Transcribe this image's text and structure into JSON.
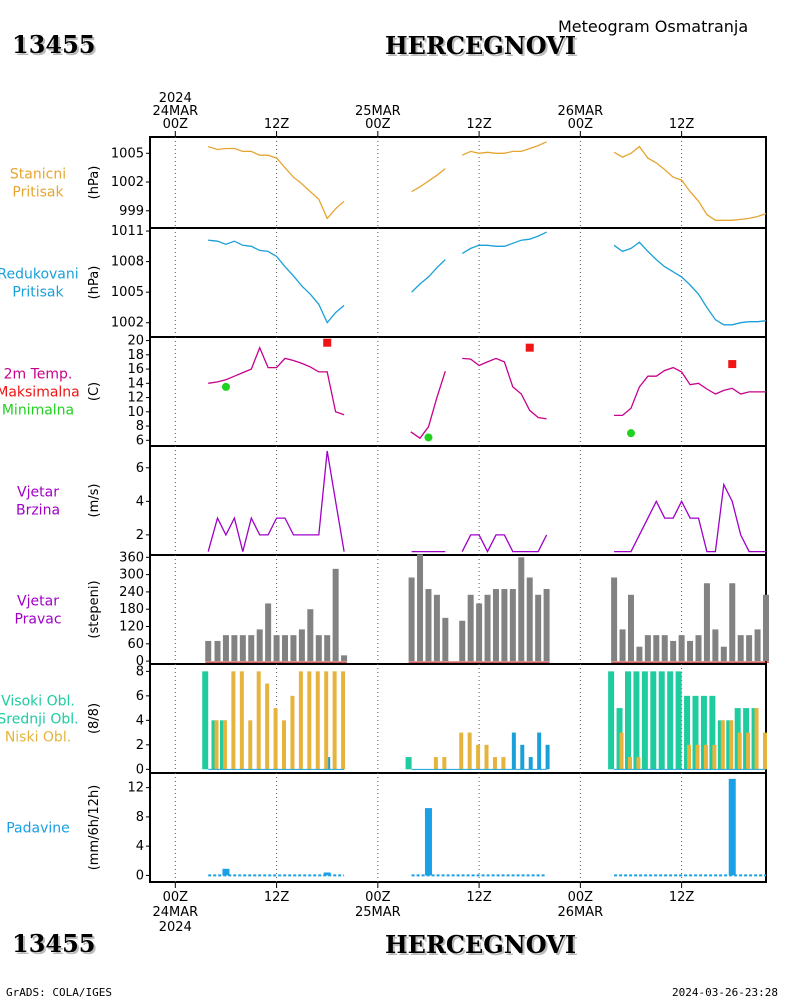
{
  "header": {
    "station_id": "13455",
    "station_name": "HERCEGNOVI",
    "product": "Meteogram Osmatranja"
  },
  "footer": {
    "credit": "GrADS: COLA/IGES",
    "timestamp": "2024-03-26-23:28"
  },
  "time_axis": {
    "top_ticks": [
      {
        "hour": 0,
        "lines": [
          "2024",
          "24MAR",
          "00Z"
        ]
      },
      {
        "hour": 12,
        "lines": [
          "12Z"
        ]
      },
      {
        "hour": 24,
        "lines": [
          "25MAR",
          "00Z"
        ]
      },
      {
        "hour": 36,
        "lines": [
          "12Z"
        ]
      },
      {
        "hour": 48,
        "lines": [
          "26MAR",
          "00Z"
        ]
      },
      {
        "hour": 60,
        "lines": [
          "12Z"
        ]
      }
    ],
    "bottom_ticks": [
      {
        "hour": 0,
        "lines": [
          "00Z",
          "24MAR",
          "2024"
        ]
      },
      {
        "hour": 12,
        "lines": [
          "12Z"
        ]
      },
      {
        "hour": 24,
        "lines": [
          "00Z",
          "25MAR"
        ]
      },
      {
        "hour": 36,
        "lines": [
          "12Z"
        ]
      },
      {
        "hour": 48,
        "lines": [
          "00Z",
          "26MAR"
        ]
      },
      {
        "hour": 60,
        "lines": [
          "12Z"
        ]
      }
    ],
    "xlim": [
      -3,
      70
    ]
  },
  "colors": {
    "pressure": "#e6a532",
    "reduced_pressure": "#1aa0d8",
    "temperature": "#c8008c",
    "max_temp": "#f01414",
    "min_temp": "#1ed21e",
    "wind": "#a000c8",
    "wind_dir_bar": "#828282",
    "cloud_high": "#1ecca0",
    "cloud_mid": "#1ecca0",
    "cloud_low": "#e6b43c",
    "cloud_blue": "#1aa0d8",
    "precip": "#1aa0e6",
    "precip_mark": "#b40000"
  },
  "chart_data": [
    {
      "id": "station_pressure",
      "type": "line",
      "title_lines": [
        "Stanicni",
        "Pritisak"
      ],
      "title_colors": [
        "pressure",
        "pressure"
      ],
      "ylabel": "(hPa)",
      "ylim": [
        997.2,
        1006.7
      ],
      "yticks": [
        999,
        1002,
        1005
      ],
      "series": [
        {
          "color": "pressure",
          "x": [
            3.9,
            5,
            6,
            7,
            8,
            9,
            10,
            11,
            12,
            13,
            14,
            15,
            16,
            17,
            18,
            19,
            20
          ],
          "y": [
            1005.7,
            1005.4,
            1005.5,
            1005.5,
            1005.2,
            1005.2,
            1004.8,
            1004.8,
            1004.5,
            1003.5,
            1002.5,
            1001.8,
            1001.0,
            1000.2,
            998.2,
            999.2,
            1000.0
          ]
        },
        {
          "color": "pressure",
          "x": [
            28,
            29,
            30,
            31,
            32
          ],
          "y": [
            1001.0,
            1001.5,
            1002.1,
            1002.7,
            1003.4
          ]
        },
        {
          "color": "pressure",
          "x": [
            34,
            35,
            36,
            37,
            38,
            39,
            40,
            41,
            42,
            43,
            44
          ],
          "y": [
            1004.8,
            1005.2,
            1005.0,
            1005.1,
            1005.0,
            1005.0,
            1005.2,
            1005.2,
            1005.5,
            1005.8,
            1006.2
          ]
        },
        {
          "color": "pressure",
          "x": [
            52,
            53,
            54,
            55,
            56,
            57,
            58,
            59,
            60,
            61,
            62,
            63,
            64,
            65,
            66,
            67,
            68,
            69,
            70
          ],
          "y": [
            1005.1,
            1004.6,
            1005.0,
            1005.7,
            1004.5,
            1004.0,
            1003.3,
            1002.5,
            1002.2,
            1001.0,
            1000.0,
            998.6,
            998.0,
            998.0,
            998.0,
            998.1,
            998.2,
            998.4,
            998.7
          ]
        }
      ]
    },
    {
      "id": "reduced_pressure",
      "type": "line",
      "title_lines": [
        "Redukovani",
        "Pritisak"
      ],
      "title_colors": [
        "reduced_pressure",
        "reduced_pressure"
      ],
      "ylabel": "(hPa)",
      "ylim": [
        1000.6,
        1011.3
      ],
      "yticks": [
        1002,
        1005,
        1008,
        1011
      ],
      "series": [
        {
          "color": "reduced_pressure",
          "x": [
            3.9,
            5,
            6,
            7,
            8,
            9,
            10,
            11,
            12,
            13,
            14,
            15,
            16,
            17,
            18,
            19,
            20
          ],
          "y": [
            1010.1,
            1010.0,
            1009.7,
            1010.0,
            1009.6,
            1009.5,
            1009.1,
            1009.0,
            1008.5,
            1007.5,
            1006.6,
            1005.6,
            1004.8,
            1003.8,
            1002.0,
            1003.0,
            1003.7
          ]
        },
        {
          "color": "reduced_pressure",
          "x": [
            28,
            29,
            30,
            31,
            32
          ],
          "y": [
            1005.0,
            1005.8,
            1006.5,
            1007.4,
            1008.2
          ]
        },
        {
          "color": "reduced_pressure",
          "x": [
            34,
            35,
            36,
            37,
            38,
            39,
            40,
            41,
            42,
            43,
            44
          ],
          "y": [
            1008.8,
            1009.3,
            1009.6,
            1009.6,
            1009.5,
            1009.5,
            1009.8,
            1010.1,
            1010.2,
            1010.5,
            1010.9
          ]
        },
        {
          "color": "reduced_pressure",
          "x": [
            52,
            53,
            54,
            55,
            56,
            57,
            58,
            59,
            60,
            61,
            62,
            63,
            64,
            65,
            66,
            67,
            68,
            69,
            70
          ],
          "y": [
            1009.6,
            1009.0,
            1009.3,
            1009.9,
            1009.0,
            1008.2,
            1007.5,
            1007.0,
            1006.5,
            1005.7,
            1004.8,
            1003.5,
            1002.3,
            1001.8,
            1001.8,
            1002.0,
            1002.1,
            1002.1,
            1002.2
          ]
        }
      ]
    },
    {
      "id": "temperature",
      "type": "line",
      "title_lines": [
        "2m Temp.",
        "Maksimalna",
        "Minimalna"
      ],
      "title_colors": [
        "temperature",
        "max_temp",
        "min_temp"
      ],
      "ylabel": "(C)",
      "ylim": [
        5.2,
        20.5
      ],
      "yticks": [
        6,
        8,
        10,
        12,
        14,
        16,
        18,
        20
      ],
      "series": [
        {
          "color": "temperature",
          "x": [
            3.9,
            5,
            6,
            7,
            8,
            9,
            10,
            11,
            12,
            13,
            14,
            15,
            16,
            17,
            18,
            19,
            20
          ],
          "y": [
            14.0,
            14.2,
            14.5,
            15.0,
            15.5,
            16.0,
            19.0,
            16.2,
            16.2,
            17.5,
            17.2,
            16.8,
            16.3,
            15.6,
            15.6,
            10.0,
            9.6
          ]
        },
        {
          "color": "temperature",
          "x": [
            27.9,
            29,
            30,
            31,
            32
          ],
          "y": [
            7.2,
            6.3,
            7.9,
            12.0,
            15.7
          ]
        },
        {
          "color": "temperature",
          "x": [
            34,
            35,
            36,
            37,
            38,
            39,
            40,
            41,
            42,
            43,
            44
          ],
          "y": [
            17.5,
            17.4,
            16.5,
            17.0,
            17.5,
            17.0,
            13.5,
            12.5,
            10.2,
            9.2,
            9.0
          ]
        },
        {
          "color": "temperature",
          "x": [
            52,
            53,
            54,
            55,
            56,
            57,
            58,
            59,
            60,
            61,
            62,
            63,
            64,
            65,
            66,
            67,
            68,
            69,
            70
          ],
          "y": [
            9.5,
            9.5,
            10.5,
            13.5,
            15.0,
            15.0,
            15.8,
            16.2,
            15.6,
            13.8,
            14.0,
            13.2,
            12.5,
            13.0,
            13.3,
            12.5,
            12.8,
            12.8,
            12.8
          ]
        }
      ],
      "markers": [
        {
          "kind": "max",
          "color": "max_temp",
          "shape": "square",
          "x": [
            18,
            42,
            66
          ],
          "y": [
            19.7,
            19.0,
            16.7
          ]
        },
        {
          "kind": "min",
          "color": "min_temp",
          "shape": "circle",
          "x": [
            6,
            30,
            54
          ],
          "y": [
            13.5,
            6.4,
            7.0
          ]
        }
      ]
    },
    {
      "id": "wind_speed",
      "type": "line",
      "title_lines": [
        "Vjetar",
        "Brzina"
      ],
      "title_colors": [
        "wind",
        "wind"
      ],
      "ylabel": "(m/s)",
      "ylim": [
        0.8,
        7.3
      ],
      "yticks": [
        2,
        4,
        6
      ],
      "series": [
        {
          "color": "wind",
          "x": [
            3.9,
            5,
            6,
            7,
            8,
            9,
            10,
            11,
            12,
            13,
            14,
            15,
            16,
            17,
            18,
            19,
            20
          ],
          "y": [
            1,
            3,
            2,
            3,
            1,
            3,
            2,
            2,
            3,
            3,
            2,
            2,
            2,
            2,
            7,
            4,
            1
          ]
        },
        {
          "color": "wind",
          "x": [
            28,
            29,
            30,
            31,
            32
          ],
          "y": [
            1,
            1,
            1,
            1,
            1
          ]
        },
        {
          "color": "wind",
          "x": [
            34,
            35,
            36,
            37,
            38,
            39,
            40,
            41,
            42,
            43,
            44
          ],
          "y": [
            1,
            2,
            2,
            1,
            2,
            2,
            1,
            1,
            1,
            1,
            2
          ]
        },
        {
          "color": "wind",
          "x": [
            52,
            53,
            54,
            55,
            56,
            57,
            58,
            59,
            60,
            61,
            62,
            63,
            64,
            65,
            66,
            67,
            68,
            69,
            70
          ],
          "y": [
            1,
            1,
            1,
            2,
            3,
            4,
            3,
            3,
            4,
            3,
            3,
            1,
            1,
            5,
            4,
            2,
            1,
            1,
            1
          ]
        }
      ]
    },
    {
      "id": "wind_direction",
      "type": "bar",
      "title_lines": [
        "Vjetar",
        "Pravac"
      ],
      "title_colors": [
        "wind",
        "wind"
      ],
      "ylabel": "(stepeni)",
      "ylim": [
        -10,
        368
      ],
      "yticks": [
        0,
        60,
        120,
        180,
        240,
        300,
        360
      ],
      "bar_color": "wind_dir_bar",
      "x": [
        3.9,
        5,
        6,
        7,
        8,
        9,
        10,
        11,
        12,
        13,
        14,
        15,
        16,
        17,
        18,
        19,
        20,
        28,
        29,
        30,
        31,
        32,
        33,
        34,
        35,
        36,
        37,
        38,
        39,
        40,
        41,
        42,
        43,
        44,
        52,
        53,
        54,
        55,
        56,
        57,
        58,
        59,
        60,
        61,
        62,
        63,
        64,
        65,
        66,
        67,
        68,
        69,
        70
      ],
      "values": [
        70,
        70,
        90,
        90,
        90,
        90,
        110,
        200,
        90,
        90,
        90,
        110,
        180,
        90,
        90,
        320,
        20,
        290,
        370,
        250,
        230,
        150,
        0,
        140,
        230,
        200,
        230,
        250,
        250,
        250,
        360,
        290,
        230,
        250,
        290,
        110,
        230,
        50,
        90,
        90,
        90,
        70,
        90,
        70,
        90,
        270,
        110,
        50,
        270,
        90,
        90,
        110,
        230
      ]
    },
    {
      "id": "clouds",
      "type": "bar",
      "title_lines": [
        "Visoki Obl.",
        "Srednji Obl.",
        "Niski Obl."
      ],
      "title_colors": [
        "cloud_high",
        "cloud_high",
        "cloud_low"
      ],
      "ylabel": "(8/8)",
      "ylim": [
        -0.3,
        8.6
      ],
      "yticks": [
        0,
        2,
        4,
        6,
        8
      ],
      "x": [
        3.9,
        5,
        6,
        7,
        8,
        9,
        10,
        11,
        12,
        13,
        14,
        15,
        16,
        17,
        18,
        19,
        20,
        28,
        29,
        30,
        31,
        32,
        33,
        34,
        35,
        36,
        37,
        38,
        39,
        40,
        41,
        42,
        43,
        44,
        52,
        53,
        54,
        55,
        56,
        57,
        58,
        59,
        60,
        61,
        62,
        63,
        64,
        65,
        66,
        67,
        68,
        69,
        70
      ],
      "series": [
        {
          "name": "Visoki Obl.",
          "color": "cloud_high",
          "values": [
            8,
            4,
            4,
            0,
            0,
            0,
            0,
            0,
            0,
            0,
            0,
            0,
            0,
            0,
            0,
            0,
            0,
            1,
            0,
            0,
            0,
            0,
            0,
            0,
            0,
            0,
            0,
            0,
            0,
            0,
            0,
            0,
            0,
            0,
            8,
            5,
            8,
            8,
            8,
            8,
            8,
            8,
            8,
            6,
            6,
            6,
            6,
            4,
            4,
            5,
            5,
            5,
            0
          ]
        },
        {
          "name": "Srednji Obl.",
          "color": "cloud_blue",
          "values": [
            0,
            0,
            0,
            0,
            0,
            0,
            0,
            0,
            0,
            0,
            0,
            0,
            0,
            0,
            1,
            0,
            0,
            0,
            0,
            0,
            0,
            0,
            0,
            0,
            0,
            0,
            0,
            0,
            0,
            3,
            2,
            1,
            3,
            2,
            0,
            0,
            0,
            0,
            0,
            0,
            0,
            0,
            0,
            0,
            0,
            0,
            0,
            0,
            0,
            0,
            0,
            0,
            0
          ]
        },
        {
          "name": "Niski Obl.",
          "color": "cloud_low",
          "values": [
            0,
            4,
            4,
            8,
            8,
            4,
            8,
            7,
            5,
            4,
            6,
            8,
            8,
            8,
            8,
            8,
            8,
            0,
            0,
            0,
            1,
            1,
            0,
            3,
            3,
            2,
            2,
            1,
            1,
            0,
            0,
            0,
            0,
            0,
            0,
            3,
            1,
            1,
            0,
            0,
            0,
            0,
            0,
            2,
            2,
            2,
            2,
            4,
            4,
            3,
            3,
            5,
            3
          ]
        }
      ]
    },
    {
      "id": "precipitation",
      "type": "bar",
      "title_lines": [
        "Padavine"
      ],
      "title_colors": [
        "precip"
      ],
      "ylabel": "(mm/6h/12h)",
      "ylim": [
        -0.9,
        14.0
      ],
      "yticks": [
        0,
        4,
        8,
        12
      ],
      "bar_color": "precip",
      "x": [
        6,
        18,
        30,
        66
      ],
      "values": [
        0.9,
        0.4,
        9.2,
        13.2
      ],
      "trace_segments": [
        [
          3.9,
          20
        ],
        [
          28,
          44
        ],
        [
          52,
          70
        ]
      ]
    }
  ]
}
